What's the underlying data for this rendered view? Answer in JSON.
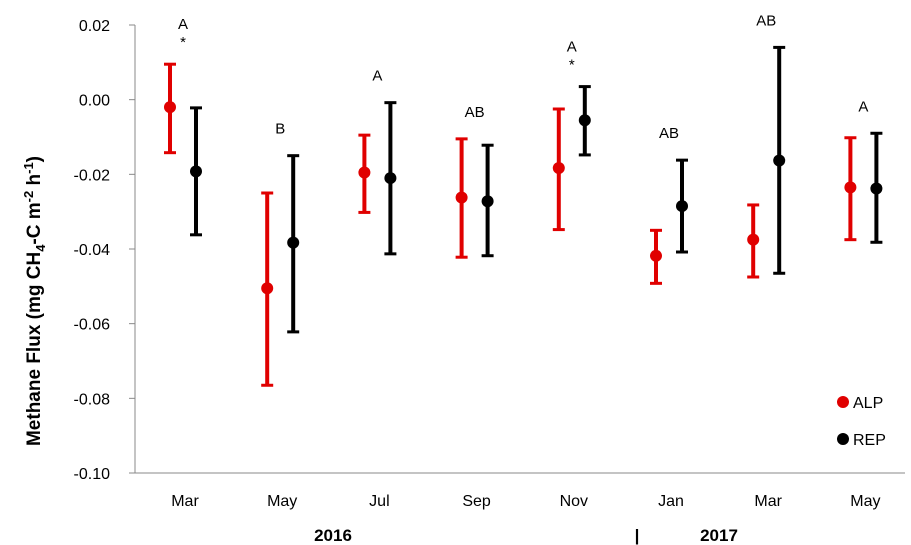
{
  "chart_data": {
    "type": "scatter",
    "ylabel": {
      "main": "Methane Flux (mg CH",
      "sub4": "4",
      "mid": "-C m",
      "sup2": "-2",
      "mid2": " h",
      "sup1": "-1",
      "end": ")"
    },
    "ylim": [
      -0.1,
      0.02
    ],
    "yticks": [
      "0.02",
      "0.00",
      "-0.02",
      "-0.04",
      "-0.06",
      "-0.08",
      "-0.10"
    ],
    "ytick_values": [
      0.02,
      0.0,
      -0.02,
      -0.04,
      -0.06,
      -0.08,
      -0.1
    ],
    "categories": [
      "Mar",
      "May",
      "Jul",
      "Sep",
      "Nov",
      "Jan",
      "Mar",
      "May"
    ],
    "year_labels": [
      "2016",
      "|",
      "2017"
    ],
    "series": [
      {
        "name": "ALP",
        "color": "#e00000",
        "values": [
          -0.002,
          -0.0505,
          -0.0195,
          -0.0262,
          -0.0183,
          -0.0418,
          -0.0375,
          -0.0235
        ],
        "err_low": [
          -0.0142,
          -0.0765,
          -0.0302,
          -0.0422,
          -0.0348,
          -0.0492,
          -0.0475,
          -0.0375
        ],
        "err_high": [
          0.0095,
          -0.025,
          -0.0095,
          -0.0105,
          -0.0025,
          -0.035,
          -0.0282,
          -0.0102
        ]
      },
      {
        "name": "REP",
        "color": "#000000",
        "values": [
          -0.0192,
          -0.0383,
          -0.021,
          -0.0272,
          -0.0055,
          -0.0285,
          -0.0163,
          -0.0238
        ],
        "err_low": [
          -0.0362,
          -0.0622,
          -0.0413,
          -0.0418,
          -0.0148,
          -0.0408,
          -0.0465,
          -0.0382
        ],
        "err_high": [
          -0.0022,
          -0.015,
          -0.0008,
          -0.0122,
          0.0035,
          -0.0162,
          0.014,
          -0.009
        ]
      }
    ],
    "group_letters": [
      "A",
      "B",
      "A",
      "AB",
      "A",
      "AB",
      "AB",
      "A"
    ],
    "significance": [
      "*",
      "",
      "",
      "",
      "*",
      "",
      "",
      ""
    ],
    "legend_position": "bottom-right",
    "grid": false
  }
}
